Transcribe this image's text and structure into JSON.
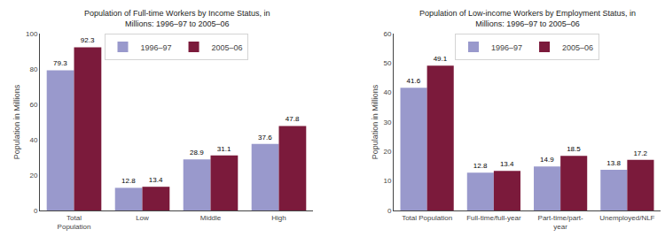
{
  "chart_data": [
    {
      "type": "bar",
      "title": "Population of Full-time Workers by Income Status, in\nMillions: 1996–97 to 2005–06",
      "categories": [
        "Total\nPopulation",
        "Low",
        "Middle",
        "High"
      ],
      "series": [
        {
          "name": "1996–97",
          "color": "#9999cc",
          "values": [
            79.3,
            12.8,
            28.9,
            37.6
          ]
        },
        {
          "name": "2005–06",
          "color": "#7b1a3b",
          "values": [
            92.3,
            13.4,
            31.1,
            47.8
          ]
        }
      ],
      "ylabel": "Population in Millions",
      "ylim": [
        0,
        100
      ],
      "yticks": [
        0,
        20,
        40,
        60,
        80,
        100
      ],
      "data_labels": true,
      "legend": "top",
      "grid": false
    },
    {
      "type": "bar",
      "title": "Population of Low-income Workers by Employment Status, in\nMillions: 1996–97 to 2005–06",
      "categories": [
        "Total Population",
        "Full-time/full-year",
        "Part-time/part-\nyear",
        "Unemployed/NLF"
      ],
      "series": [
        {
          "name": "1996–97",
          "color": "#9999cc",
          "values": [
            41.6,
            12.8,
            14.9,
            13.8
          ]
        },
        {
          "name": "2005–06",
          "color": "#7b1a3b",
          "values": [
            49.1,
            13.4,
            18.5,
            17.2
          ]
        }
      ],
      "ylabel": "Population in Millions",
      "ylim": [
        0,
        60
      ],
      "yticks": [
        0,
        10,
        20,
        30,
        40,
        50,
        60
      ],
      "data_labels": true,
      "legend": "top",
      "grid": false
    }
  ]
}
